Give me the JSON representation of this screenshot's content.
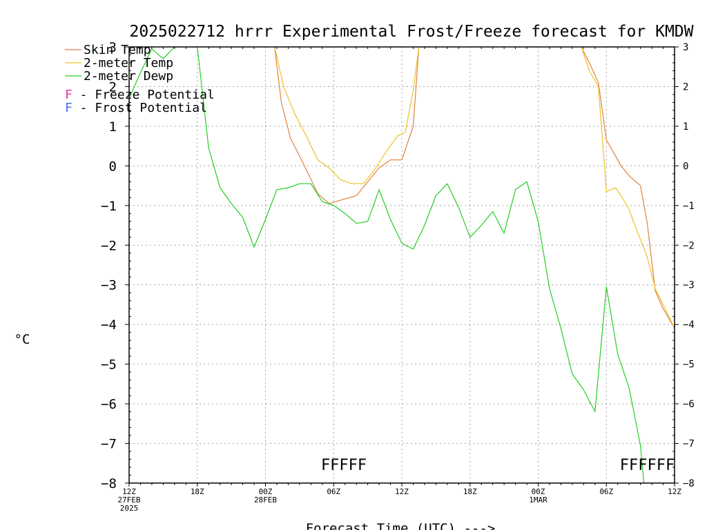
{
  "chart_data": {
    "type": "line",
    "title": "2025022712 hrrr Experimental Frost/Freeze forecast for KMDW",
    "xlabel": "Forecast Time (UTC) --->",
    "ylabel": "°C",
    "ylim": [
      -8,
      3
    ],
    "xlim": [
      0,
      48
    ],
    "yticks": [
      -8,
      -7,
      -6,
      -5,
      -4,
      -3,
      -2,
      -1,
      0,
      1,
      2,
      3
    ],
    "grid": true,
    "legend_position": "top-left",
    "x_ticks": [
      {
        "x": 0,
        "lines": [
          "12Z",
          "27FEB",
          "2025"
        ]
      },
      {
        "x": 6,
        "lines": [
          "18Z"
        ]
      },
      {
        "x": 12,
        "lines": [
          "00Z",
          "28FEB"
        ]
      },
      {
        "x": 18,
        "lines": [
          "06Z"
        ]
      },
      {
        "x": 24,
        "lines": [
          "12Z"
        ]
      },
      {
        "x": 30,
        "lines": [
          "18Z"
        ]
      },
      {
        "x": 36,
        "lines": [
          "00Z",
          "1MAR"
        ]
      },
      {
        "x": 42,
        "lines": [
          "06Z"
        ]
      },
      {
        "x": 48,
        "lines": [
          "12Z"
        ]
      }
    ],
    "series": [
      {
        "name": "Skin Temp",
        "color": "#e0803a",
        "x": [
          12.8,
          13.4,
          14.2,
          15,
          15.6,
          16.6,
          17.6,
          18.8,
          20,
          21,
          22,
          23,
          24,
          25,
          25.5
        ],
        "y": [
          3.0,
          1.6,
          0.7,
          0.25,
          -0.1,
          -0.7,
          -0.95,
          -0.85,
          -0.75,
          -0.4,
          -0.05,
          0.15,
          0.15,
          1.0,
          3.0
        ],
        "rest": [
          {
            "x": [
              39.8,
              40.5,
              41.3,
              42,
              42.7,
              43.3,
              44,
              45,
              45.6,
              46.3,
              47,
              48
            ],
            "y": [
              3.0,
              2.6,
              2.1,
              0.65,
              0.3,
              0.0,
              -0.25,
              -0.5,
              -1.45,
              -3.15,
              -3.6,
              -4.1
            ]
          }
        ]
      },
      {
        "name": "2-meter Temp",
        "color": "#f0c020",
        "x": [
          12.8,
          13.6,
          14.6,
          15.6,
          16.6,
          17.6,
          18.6,
          19.6,
          20.6,
          21.6,
          22.6,
          23.6,
          24.3,
          25.0,
          25.5
        ],
        "y": [
          3.0,
          2.0,
          1.3,
          0.75,
          0.15,
          -0.05,
          -0.35,
          -0.45,
          -0.45,
          -0.1,
          0.35,
          0.75,
          0.85,
          1.9,
          3.0
        ],
        "rest": [
          {
            "x": [
              39.8,
              40.5,
              41.3,
              42,
              42.8,
              43.3,
              44,
              44.5,
              45.2,
              45.6,
              46.3,
              47,
              48
            ],
            "y": [
              3.0,
              2.4,
              2.0,
              -0.65,
              -0.55,
              -0.75,
              -1.1,
              -1.5,
              -2.0,
              -2.3,
              -3.1,
              -3.5,
              -4.1
            ]
          }
        ]
      },
      {
        "name": "2-meter Dewp",
        "color": "#22cc22",
        "x": [
          0,
          1,
          2,
          3,
          4,
          5,
          6,
          7,
          8,
          9,
          10,
          11,
          12,
          13,
          14,
          15,
          16,
          17,
          18,
          19,
          20,
          21,
          22,
          23,
          24,
          25,
          26,
          27,
          28,
          29,
          30,
          31,
          32,
          33,
          34,
          35,
          36,
          37,
          38,
          39,
          40,
          41,
          42,
          43,
          44,
          45,
          45.3
        ],
        "y": [
          1.7,
          2.35,
          2.95,
          2.7,
          3.0,
          3.0,
          3.0,
          0.45,
          -0.55,
          -0.95,
          -1.3,
          -2.05,
          -1.35,
          -0.6,
          -0.55,
          -0.45,
          -0.45,
          -0.9,
          -1.0,
          -1.2,
          -1.45,
          -1.4,
          -0.6,
          -1.35,
          -1.95,
          -2.1,
          -1.5,
          -0.75,
          -0.45,
          -1.05,
          -1.8,
          -1.5,
          -1.15,
          -1.7,
          -0.6,
          -0.4,
          -1.4,
          -3.1,
          -4.1,
          -5.25,
          -5.65,
          -6.2,
          -3.05,
          -4.75,
          -5.6,
          -7.05,
          -8.0
        ]
      }
    ],
    "annotations": {
      "legend_markers": [
        {
          "letter": "F",
          "text": " - Freeze Potential",
          "color": "#d83ca0"
        },
        {
          "letter": "F",
          "text": " - Frost Potential",
          "color": "#4c6ce8"
        }
      ],
      "freeze_flags": [
        {
          "x": 18.9,
          "text": "FFFFF",
          "color": "#d83ca0"
        },
        {
          "x": 45.6,
          "text": "FFFFFF",
          "color": "#d83ca0"
        }
      ]
    }
  }
}
